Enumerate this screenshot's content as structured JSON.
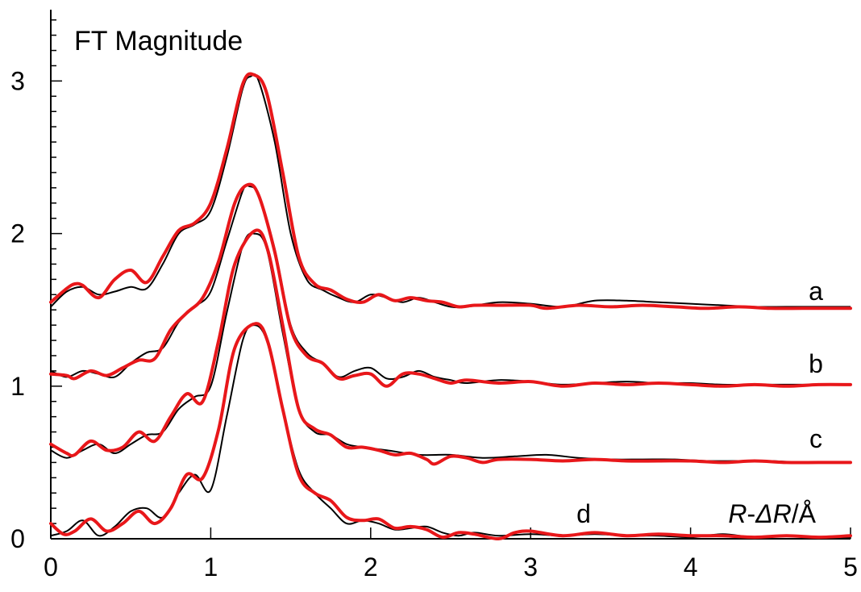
{
  "chart_data": {
    "type": "line",
    "title": "",
    "inset_label": "FT Magnitude",
    "xlabel": {
      "r": "R",
      "dash": "-",
      "delta": "ΔR",
      "unit": "/Å"
    },
    "ylabel": "",
    "xlim": [
      0,
      5
    ],
    "ylim": [
      0,
      3.5
    ],
    "x_ticks": [
      "0",
      "1",
      "2",
      "3",
      "4",
      "5"
    ],
    "y_ticks": [
      "0",
      "1",
      "2",
      "3"
    ],
    "grid": false,
    "colors": {
      "experiment": "#000000",
      "fit": "#e8171a"
    },
    "series": [
      {
        "label": "a",
        "experiment": [
          [
            0,
            1.52
          ],
          [
            0.1,
            1.62
          ],
          [
            0.2,
            1.65
          ],
          [
            0.3,
            1.6
          ],
          [
            0.4,
            1.62
          ],
          [
            0.5,
            1.65
          ],
          [
            0.6,
            1.64
          ],
          [
            0.7,
            1.8
          ],
          [
            0.8,
            2.0
          ],
          [
            0.9,
            2.06
          ],
          [
            1.0,
            2.15
          ],
          [
            1.1,
            2.5
          ],
          [
            1.2,
            2.95
          ],
          [
            1.25,
            3.03
          ],
          [
            1.3,
            3.0
          ],
          [
            1.4,
            2.6
          ],
          [
            1.5,
            2.0
          ],
          [
            1.6,
            1.7
          ],
          [
            1.7,
            1.63
          ],
          [
            1.8,
            1.58
          ],
          [
            1.9,
            1.55
          ],
          [
            2.0,
            1.6
          ],
          [
            2.1,
            1.58
          ],
          [
            2.2,
            1.55
          ],
          [
            2.3,
            1.58
          ],
          [
            2.4,
            1.55
          ],
          [
            2.5,
            1.52
          ],
          [
            2.6,
            1.52
          ],
          [
            2.8,
            1.55
          ],
          [
            3.0,
            1.54
          ],
          [
            3.2,
            1.52
          ],
          [
            3.4,
            1.56
          ],
          [
            3.6,
            1.56
          ],
          [
            3.8,
            1.55
          ],
          [
            4.0,
            1.54
          ],
          [
            4.2,
            1.53
          ],
          [
            4.4,
            1.52
          ],
          [
            4.6,
            1.52
          ],
          [
            4.8,
            1.52
          ],
          [
            5.0,
            1.52
          ]
        ],
        "fit": [
          [
            0,
            1.55
          ],
          [
            0.1,
            1.64
          ],
          [
            0.15,
            1.67
          ],
          [
            0.2,
            1.66
          ],
          [
            0.3,
            1.58
          ],
          [
            0.4,
            1.7
          ],
          [
            0.5,
            1.76
          ],
          [
            0.6,
            1.68
          ],
          [
            0.7,
            1.85
          ],
          [
            0.8,
            2.02
          ],
          [
            0.9,
            2.07
          ],
          [
            1.0,
            2.2
          ],
          [
            1.1,
            2.55
          ],
          [
            1.2,
            2.98
          ],
          [
            1.27,
            3.04
          ],
          [
            1.35,
            2.92
          ],
          [
            1.45,
            2.4
          ],
          [
            1.55,
            1.85
          ],
          [
            1.65,
            1.67
          ],
          [
            1.75,
            1.63
          ],
          [
            1.85,
            1.57
          ],
          [
            1.95,
            1.55
          ],
          [
            2.05,
            1.6
          ],
          [
            2.15,
            1.56
          ],
          [
            2.25,
            1.58
          ],
          [
            2.35,
            1.56
          ],
          [
            2.45,
            1.55
          ],
          [
            2.55,
            1.52
          ],
          [
            2.65,
            1.53
          ],
          [
            2.8,
            1.53
          ],
          [
            3.0,
            1.53
          ],
          [
            3.1,
            1.51
          ],
          [
            3.3,
            1.53
          ],
          [
            3.5,
            1.52
          ],
          [
            3.7,
            1.53
          ],
          [
            3.9,
            1.52
          ],
          [
            4.1,
            1.51
          ],
          [
            4.3,
            1.52
          ],
          [
            4.5,
            1.51
          ],
          [
            4.7,
            1.51
          ],
          [
            4.9,
            1.51
          ],
          [
            5.0,
            1.51
          ]
        ]
      },
      {
        "label": "b",
        "experiment": [
          [
            0,
            1.1
          ],
          [
            0.1,
            1.06
          ],
          [
            0.2,
            1.1
          ],
          [
            0.3,
            1.08
          ],
          [
            0.4,
            1.06
          ],
          [
            0.5,
            1.15
          ],
          [
            0.6,
            1.22
          ],
          [
            0.7,
            1.25
          ],
          [
            0.8,
            1.42
          ],
          [
            0.9,
            1.52
          ],
          [
            1.0,
            1.62
          ],
          [
            1.1,
            1.95
          ],
          [
            1.2,
            2.28
          ],
          [
            1.24,
            2.31
          ],
          [
            1.3,
            2.25
          ],
          [
            1.4,
            1.9
          ],
          [
            1.5,
            1.4
          ],
          [
            1.6,
            1.22
          ],
          [
            1.7,
            1.15
          ],
          [
            1.8,
            1.06
          ],
          [
            1.9,
            1.1
          ],
          [
            2.0,
            1.12
          ],
          [
            2.1,
            1.05
          ],
          [
            2.2,
            1.06
          ],
          [
            2.3,
            1.1
          ],
          [
            2.4,
            1.06
          ],
          [
            2.5,
            1.04
          ],
          [
            2.6,
            1.02
          ],
          [
            2.8,
            1.04
          ],
          [
            3.0,
            1.03
          ],
          [
            3.2,
            1.01
          ],
          [
            3.4,
            1.02
          ],
          [
            3.6,
            1.03
          ],
          [
            3.8,
            1.02
          ],
          [
            4.0,
            1.02
          ],
          [
            4.2,
            1.01
          ],
          [
            4.4,
            1.01
          ],
          [
            4.6,
            1.01
          ],
          [
            4.8,
            1.01
          ],
          [
            5.0,
            1.01
          ]
        ],
        "fit": [
          [
            0,
            1.08
          ],
          [
            0.1,
            1.07
          ],
          [
            0.15,
            1.05
          ],
          [
            0.25,
            1.1
          ],
          [
            0.35,
            1.07
          ],
          [
            0.45,
            1.12
          ],
          [
            0.55,
            1.17
          ],
          [
            0.65,
            1.18
          ],
          [
            0.75,
            1.37
          ],
          [
            0.85,
            1.48
          ],
          [
            0.95,
            1.58
          ],
          [
            1.05,
            1.82
          ],
          [
            1.15,
            2.2
          ],
          [
            1.23,
            2.32
          ],
          [
            1.3,
            2.25
          ],
          [
            1.4,
            1.88
          ],
          [
            1.5,
            1.38
          ],
          [
            1.6,
            1.2
          ],
          [
            1.7,
            1.15
          ],
          [
            1.8,
            1.05
          ],
          [
            1.9,
            1.07
          ],
          [
            2.0,
            1.08
          ],
          [
            2.1,
            1.0
          ],
          [
            2.2,
            1.08
          ],
          [
            2.3,
            1.08
          ],
          [
            2.4,
            1.05
          ],
          [
            2.5,
            1.02
          ],
          [
            2.6,
            1.04
          ],
          [
            2.8,
            1.02
          ],
          [
            3.0,
            1.03
          ],
          [
            3.2,
            1.0
          ],
          [
            3.4,
            1.02
          ],
          [
            3.6,
            1.01
          ],
          [
            3.8,
            1.02
          ],
          [
            4.0,
            1.01
          ],
          [
            4.2,
            1.0
          ],
          [
            4.4,
            1.01
          ],
          [
            4.6,
            1.0
          ],
          [
            4.8,
            1.01
          ],
          [
            5.0,
            1.01
          ]
        ]
      },
      {
        "label": "c",
        "experiment": [
          [
            0,
            0.58
          ],
          [
            0.1,
            0.53
          ],
          [
            0.2,
            0.58
          ],
          [
            0.3,
            0.62
          ],
          [
            0.4,
            0.56
          ],
          [
            0.5,
            0.62
          ],
          [
            0.6,
            0.68
          ],
          [
            0.7,
            0.7
          ],
          [
            0.8,
            0.85
          ],
          [
            0.9,
            0.93
          ],
          [
            1.0,
            1.0
          ],
          [
            1.1,
            1.48
          ],
          [
            1.2,
            1.92
          ],
          [
            1.27,
            2.0
          ],
          [
            1.35,
            1.9
          ],
          [
            1.45,
            1.35
          ],
          [
            1.55,
            0.85
          ],
          [
            1.65,
            0.7
          ],
          [
            1.75,
            0.68
          ],
          [
            1.85,
            0.62
          ],
          [
            1.95,
            0.6
          ],
          [
            2.1,
            0.58
          ],
          [
            2.3,
            0.55
          ],
          [
            2.5,
            0.55
          ],
          [
            2.7,
            0.53
          ],
          [
            2.9,
            0.54
          ],
          [
            3.1,
            0.55
          ],
          [
            3.3,
            0.53
          ],
          [
            3.5,
            0.52
          ],
          [
            3.7,
            0.52
          ],
          [
            3.9,
            0.52
          ],
          [
            4.1,
            0.51
          ],
          [
            4.3,
            0.51
          ],
          [
            4.5,
            0.51
          ],
          [
            4.7,
            0.5
          ],
          [
            4.9,
            0.5
          ],
          [
            5.0,
            0.5
          ]
        ],
        "fit": [
          [
            0,
            0.62
          ],
          [
            0.1,
            0.56
          ],
          [
            0.15,
            0.55
          ],
          [
            0.25,
            0.64
          ],
          [
            0.35,
            0.58
          ],
          [
            0.45,
            0.6
          ],
          [
            0.55,
            0.7
          ],
          [
            0.65,
            0.64
          ],
          [
            0.75,
            0.8
          ],
          [
            0.85,
            0.95
          ],
          [
            0.95,
            0.9
          ],
          [
            1.05,
            1.3
          ],
          [
            1.15,
            1.8
          ],
          [
            1.28,
            2.02
          ],
          [
            1.36,
            1.88
          ],
          [
            1.45,
            1.4
          ],
          [
            1.55,
            0.85
          ],
          [
            1.65,
            0.72
          ],
          [
            1.75,
            0.68
          ],
          [
            1.85,
            0.6
          ],
          [
            1.95,
            0.6
          ],
          [
            2.05,
            0.58
          ],
          [
            2.15,
            0.55
          ],
          [
            2.25,
            0.56
          ],
          [
            2.35,
            0.52
          ],
          [
            2.4,
            0.49
          ],
          [
            2.5,
            0.54
          ],
          [
            2.6,
            0.53
          ],
          [
            2.7,
            0.5
          ],
          [
            2.8,
            0.52
          ],
          [
            3.0,
            0.52
          ],
          [
            3.2,
            0.51
          ],
          [
            3.4,
            0.52
          ],
          [
            3.6,
            0.51
          ],
          [
            3.8,
            0.51
          ],
          [
            4.0,
            0.51
          ],
          [
            4.2,
            0.5
          ],
          [
            4.4,
            0.51
          ],
          [
            4.6,
            0.5
          ],
          [
            4.8,
            0.5
          ],
          [
            5.0,
            0.5
          ]
        ]
      },
      {
        "label": "d",
        "experiment": [
          [
            0,
            0.02
          ],
          [
            0.1,
            0.05
          ],
          [
            0.2,
            0.12
          ],
          [
            0.3,
            0.02
          ],
          [
            0.4,
            0.08
          ],
          [
            0.5,
            0.18
          ],
          [
            0.6,
            0.2
          ],
          [
            0.7,
            0.14
          ],
          [
            0.8,
            0.3
          ],
          [
            0.9,
            0.42
          ],
          [
            1.0,
            0.32
          ],
          [
            1.1,
            0.8
          ],
          [
            1.2,
            1.3
          ],
          [
            1.27,
            1.4
          ],
          [
            1.35,
            1.3
          ],
          [
            1.45,
            0.85
          ],
          [
            1.55,
            0.45
          ],
          [
            1.65,
            0.3
          ],
          [
            1.75,
            0.2
          ],
          [
            1.85,
            0.1
          ],
          [
            1.95,
            0.12
          ],
          [
            2.05,
            0.1
          ],
          [
            2.15,
            0.06
          ],
          [
            2.25,
            0.07
          ],
          [
            2.35,
            0.08
          ],
          [
            2.45,
            0.04
          ],
          [
            2.55,
            0.02
          ],
          [
            2.65,
            0.04
          ],
          [
            2.8,
            0.02
          ],
          [
            3.0,
            0.03
          ],
          [
            3.2,
            0.02
          ],
          [
            3.4,
            0.03
          ],
          [
            3.6,
            0.02
          ],
          [
            3.8,
            0.02
          ],
          [
            4.0,
            0.01
          ],
          [
            4.2,
            0.03
          ],
          [
            4.4,
            0.01
          ],
          [
            4.6,
            0.02
          ],
          [
            4.8,
            0.01
          ],
          [
            5.0,
            0.01
          ]
        ],
        "fit": [
          [
            0,
            0.1
          ],
          [
            0.08,
            0.03
          ],
          [
            0.15,
            0.05
          ],
          [
            0.25,
            0.13
          ],
          [
            0.35,
            0.05
          ],
          [
            0.45,
            0.1
          ],
          [
            0.55,
            0.18
          ],
          [
            0.65,
            0.1
          ],
          [
            0.75,
            0.2
          ],
          [
            0.85,
            0.42
          ],
          [
            0.95,
            0.4
          ],
          [
            1.05,
            0.72
          ],
          [
            1.15,
            1.25
          ],
          [
            1.28,
            1.41
          ],
          [
            1.36,
            1.28
          ],
          [
            1.45,
            0.85
          ],
          [
            1.55,
            0.42
          ],
          [
            1.65,
            0.3
          ],
          [
            1.75,
            0.25
          ],
          [
            1.85,
            0.14
          ],
          [
            1.95,
            0.12
          ],
          [
            2.05,
            0.13
          ],
          [
            2.15,
            0.07
          ],
          [
            2.25,
            0.08
          ],
          [
            2.35,
            0.06
          ],
          [
            2.45,
            0.01
          ],
          [
            2.55,
            0.04
          ],
          [
            2.65,
            0.03
          ],
          [
            2.8,
            0.0
          ],
          [
            2.9,
            0.04
          ],
          [
            3.0,
            0.05
          ],
          [
            3.2,
            0.02
          ],
          [
            3.4,
            0.04
          ],
          [
            3.6,
            0.02
          ],
          [
            3.8,
            0.03
          ],
          [
            4.0,
            0.02
          ],
          [
            4.2,
            0.02
          ],
          [
            4.4,
            0.01
          ],
          [
            4.6,
            0.02
          ],
          [
            4.8,
            0.01
          ],
          [
            5.0,
            0.02
          ]
        ]
      }
    ]
  }
}
